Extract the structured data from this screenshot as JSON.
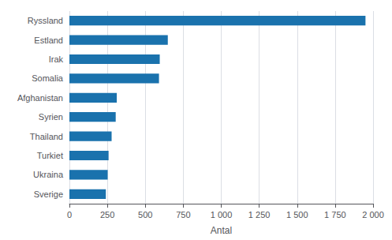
{
  "chart_data": {
    "type": "bar",
    "orientation": "horizontal",
    "categories": [
      "Sverige",
      "Ukraina",
      "Turkiet",
      "Thailand",
      "Syrien",
      "Afghanistan",
      "Somalia",
      "Irak",
      "Estland",
      "Ryssland"
    ],
    "values": [
      240,
      252,
      258,
      278,
      305,
      312,
      590,
      595,
      648,
      1950
    ],
    "color": "#1a72ad",
    "xlabel": "Antal",
    "xlim": [
      0,
      2000
    ],
    "xticks": [
      0,
      250,
      500,
      750,
      {
        "value": 1000,
        "label": "1 000"
      },
      {
        "value": 1250,
        "label": "1 250"
      },
      {
        "value": 1500,
        "label": "1 500"
      },
      {
        "value": 1750,
        "label": "1 750"
      },
      {
        "value": 2000,
        "label": "2 000"
      }
    ],
    "grid": true
  }
}
